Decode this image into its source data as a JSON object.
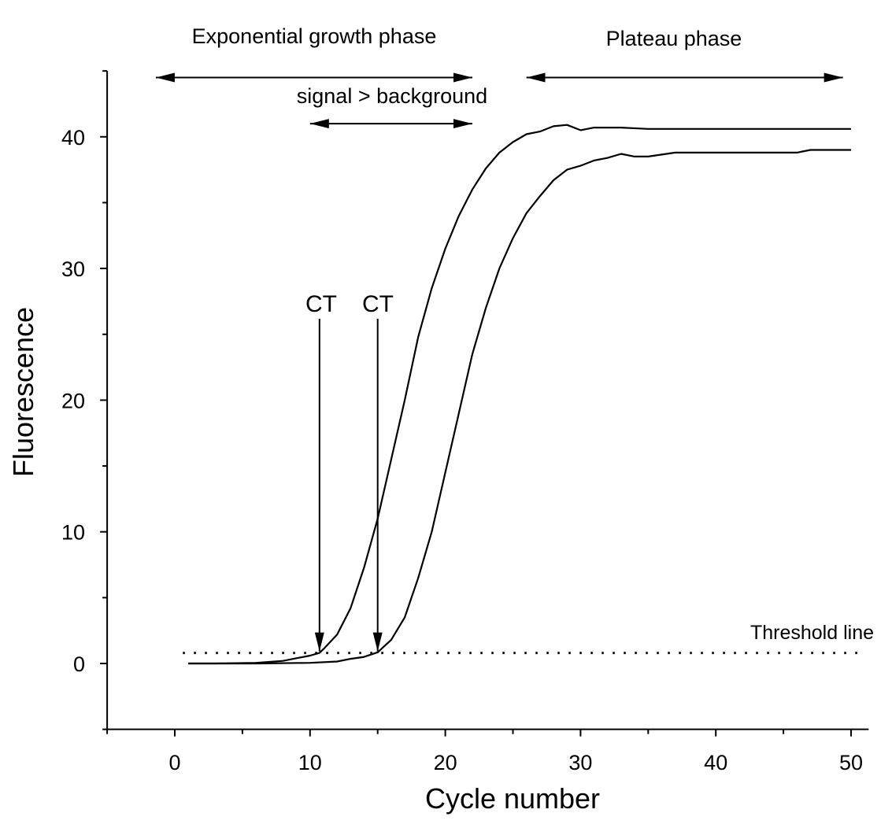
{
  "chart_data": {
    "type": "line",
    "xlabel": "Cycle number",
    "ylabel": "Fluorescence",
    "xlim": [
      -5,
      51.3
    ],
    "ylim": [
      -5,
      45
    ],
    "xticks": [
      0,
      10,
      20,
      30,
      40,
      50
    ],
    "yticks": [
      0,
      10,
      20,
      30,
      40
    ],
    "grid": false,
    "series": [
      {
        "x": [
          1,
          3,
          6,
          8,
          9,
          10,
          10.7,
          11,
          12,
          13,
          14,
          15,
          16,
          17,
          18,
          19,
          20,
          21,
          22,
          23,
          24,
          25,
          26,
          27,
          28,
          29,
          30,
          31,
          33,
          35,
          50
        ],
        "y": [
          0,
          0,
          0.05,
          0.2,
          0.4,
          0.6,
          0.8,
          1.1,
          2.2,
          4.2,
          7.3,
          11,
          15.5,
          20,
          24.8,
          28.5,
          31.5,
          34,
          36,
          37.6,
          38.8,
          39.6,
          40.2,
          40.4,
          40.8,
          40.9,
          40.5,
          40.7,
          40.7,
          40.6,
          40.6
        ]
      },
      {
        "x": [
          1,
          6,
          10,
          12,
          13,
          14,
          15,
          16,
          17,
          18,
          19,
          20,
          21,
          22,
          23,
          24,
          25,
          26,
          27,
          28,
          29,
          30,
          31,
          32,
          33,
          34,
          35,
          37,
          46,
          47,
          50
        ],
        "y": [
          0,
          0,
          0.05,
          0.15,
          0.35,
          0.5,
          0.85,
          1.8,
          3.5,
          6.5,
          10,
          14.5,
          19,
          23.5,
          27,
          30,
          32.3,
          34.2,
          35.5,
          36.7,
          37.5,
          37.8,
          38.2,
          38.4,
          38.7,
          38.5,
          38.5,
          38.8,
          38.8,
          39,
          39
        ]
      }
    ],
    "threshold": {
      "value": 0.8,
      "label": "Threshold line"
    },
    "ct_markers": [
      {
        "x": 10.7,
        "label": "CT"
      },
      {
        "x": 15.0,
        "label": "CT"
      }
    ],
    "annotations": [
      {
        "label": "Exponential growth phase",
        "x_from": -1.4,
        "x_to": 22.0,
        "y": 44.5
      },
      {
        "label": "signal > background",
        "x_from": 10.0,
        "x_to": 22.0,
        "y": 41
      },
      {
        "label": "Plateau phase",
        "x_from": 26.0,
        "x_to": 49.4,
        "y": 44.5
      }
    ]
  }
}
